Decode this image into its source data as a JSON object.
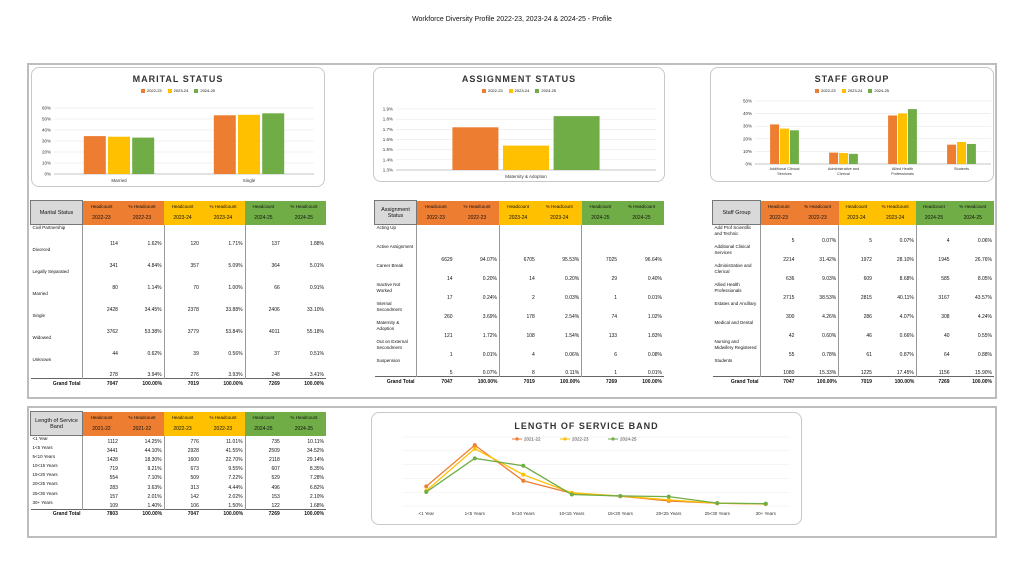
{
  "page_title": "Workforce Diversity Profile 2022-23, 2023-24 & 2024-25 - Profile",
  "colors": {
    "y1": "#ed7d31",
    "y2": "#ffc000",
    "y3": "#70ad47"
  },
  "chart_data": [
    {
      "type": "bar",
      "title": "MARITAL STATUS",
      "categories": [
        "Married",
        "Single"
      ],
      "series": [
        {
          "name": "2022-23",
          "values": [
            34.45,
            53.38
          ]
        },
        {
          "name": "2023-24",
          "values": [
            33.88,
            53.84
          ]
        },
        {
          "name": "2024-25",
          "values": [
            33.1,
            55.18
          ]
        }
      ],
      "yticks": [
        "0%",
        "10%",
        "20%",
        "30%",
        "40%",
        "50%",
        "60%"
      ],
      "ylim": [
        0,
        60
      ]
    },
    {
      "type": "bar",
      "title": "ASSIGNMENT STATUS",
      "categories": [
        "Maternity & Adoption"
      ],
      "series": [
        {
          "name": "2022-23",
          "values": [
            1.72
          ]
        },
        {
          "name": "2023-24",
          "values": [
            1.54
          ]
        },
        {
          "name": "2024-25",
          "values": [
            1.83
          ]
        }
      ],
      "yticks": [
        "1.3%",
        "1.4%",
        "1.5%",
        "1.6%",
        "1.7%",
        "1.8%",
        "1.9%"
      ],
      "ylim": [
        1.3,
        1.9
      ]
    },
    {
      "type": "bar",
      "title": "STAFF GROUP",
      "categories": [
        "Additional Clinical Services",
        "Administrative and Clerical",
        "Allied Health Professionals",
        "Students"
      ],
      "series": [
        {
          "name": "2022-23",
          "values": [
            31.42,
            9.03,
            38.53,
            15.33
          ]
        },
        {
          "name": "2023-24",
          "values": [
            28.1,
            8.68,
            40.11,
            17.45
          ]
        },
        {
          "name": "2024-25",
          "values": [
            26.76,
            8.05,
            43.57,
            15.9
          ]
        }
      ],
      "yticks": [
        "0%",
        "10%",
        "20%",
        "30%",
        "40%",
        "50%"
      ],
      "ylim": [
        0,
        50
      ]
    },
    {
      "type": "line",
      "title": "LENGTH OF SERVICE BAND",
      "categories": [
        "<1 Year",
        "1<5 Years",
        "5<10 Years",
        "10<15 Years",
        "15<20 Years",
        "20<25 Years",
        "25<30 Years",
        "30+ Years"
      ],
      "series": [
        {
          "name": "2021-22",
          "values": [
            14.25,
            44.1,
            18.3,
            9.21,
            7.1,
            3.63,
            2.01,
            1.4
          ]
        },
        {
          "name": "2022-23",
          "values": [
            11.01,
            41.55,
            22.7,
            9.55,
            7.22,
            4.44,
            2.02,
            1.5
          ]
        },
        {
          "name": "2024-25",
          "values": [
            10.11,
            34.52,
            29.14,
            8.35,
            7.28,
            6.82,
            2.1,
            1.68
          ]
        }
      ],
      "ylim": [
        0,
        50
      ]
    }
  ],
  "marital": {
    "title": "Marital Status",
    "headers": [
      "Headcount",
      "% Headcount",
      "Headcount",
      "% Headcount",
      "Headcount",
      "% Headcount"
    ],
    "years": [
      "2022-23",
      "2022-23",
      "2023-24",
      "2023-24",
      "2024-25",
      "2024-25"
    ],
    "rows": [
      [
        "Civil Partnership",
        "114",
        "1.62%",
        "120",
        "1.71%",
        "137",
        "1.88%"
      ],
      [
        "Divorced",
        "341",
        "4.84%",
        "357",
        "5.09%",
        "364",
        "5.01%"
      ],
      [
        "Legally Separated",
        "80",
        "1.14%",
        "70",
        "1.00%",
        "66",
        "0.91%"
      ],
      [
        "Married",
        "2428",
        "34.45%",
        "2378",
        "33.88%",
        "2406",
        "33.10%"
      ],
      [
        "Single",
        "3762",
        "53.38%",
        "3779",
        "53.84%",
        "4011",
        "55.18%"
      ],
      [
        "Widowed",
        "44",
        "0.62%",
        "39",
        "0.56%",
        "37",
        "0.51%"
      ],
      [
        "Unknown",
        "278",
        "3.94%",
        "276",
        "3.93%",
        "248",
        "3.41%"
      ]
    ],
    "total": [
      "Grand Total",
      "7047",
      "100.00%",
      "7019",
      "100.00%",
      "7269",
      "100.00%"
    ]
  },
  "assignment": {
    "title": "Assignment Status",
    "headers": [
      "Headcount",
      "% Headcount",
      "Headcount",
      "% Headcount",
      "Headcount",
      "% Headcount"
    ],
    "years": [
      "2022-23",
      "2022-23",
      "2023-24",
      "2023-24",
      "2024-25",
      "2024-25"
    ],
    "rows": [
      [
        "Acting Up",
        "",
        "",
        "",
        "",
        "",
        ""
      ],
      [
        "Active Assignment",
        "6629",
        "94.07%",
        "6705",
        "95.53%",
        "7025",
        "96.64%"
      ],
      [
        "Career Break",
        "14",
        "0.20%",
        "14",
        "0.20%",
        "29",
        "0.40%"
      ],
      [
        "Inactive Not Worked",
        "17",
        "0.24%",
        "2",
        "0.03%",
        "1",
        "0.01%"
      ],
      [
        "Internal Secondment",
        "260",
        "3.69%",
        "178",
        "2.54%",
        "74",
        "1.02%"
      ],
      [
        "Maternity & Adoption",
        "121",
        "1.72%",
        "108",
        "1.54%",
        "133",
        "1.83%"
      ],
      [
        "Out on External Secondment",
        "1",
        "0.01%",
        "4",
        "0.06%",
        "6",
        "0.08%"
      ],
      [
        "Suspension",
        "5",
        "0.07%",
        "8",
        "0.11%",
        "1",
        "0.01%"
      ]
    ],
    "total": [
      "Grand Total",
      "7047",
      "100.00%",
      "7019",
      "100.00%",
      "7269",
      "100.00%"
    ]
  },
  "staff": {
    "title": "Staff Group",
    "headers": [
      "Headcount",
      "% Headcount",
      "Headcount",
      "% Headcount",
      "Headcount",
      "% Headcount"
    ],
    "years": [
      "2022-23",
      "2022-23",
      "2023-24",
      "2023-24",
      "2024-25",
      "2024-25"
    ],
    "rows": [
      [
        "Add Prof Scientific and Technic",
        "5",
        "0.07%",
        "5",
        "0.07%",
        "4",
        "0.06%"
      ],
      [
        "Additional Clinical Services",
        "2214",
        "31.42%",
        "1972",
        "28.10%",
        "1945",
        "26.76%"
      ],
      [
        "Administrative and Clerical",
        "636",
        "9.03%",
        "609",
        "8.68%",
        "585",
        "8.05%"
      ],
      [
        "Allied Health Professionals",
        "2715",
        "38.53%",
        "2815",
        "40.11%",
        "3167",
        "43.57%"
      ],
      [
        "Estates and Ancillary",
        "300",
        "4.26%",
        "286",
        "4.07%",
        "308",
        "4.24%"
      ],
      [
        "Medical and Dental",
        "42",
        "0.60%",
        "46",
        "0.66%",
        "40",
        "0.55%"
      ],
      [
        "Nursing and Midwifery Registered",
        "55",
        "0.78%",
        "61",
        "0.87%",
        "64",
        "0.88%"
      ],
      [
        "Students",
        "1080",
        "15.33%",
        "1225",
        "17.45%",
        "1156",
        "15.90%"
      ]
    ],
    "total": [
      "Grand Total",
      "7047",
      "100.00%",
      "7019",
      "100.00%",
      "7269",
      "100.00%"
    ]
  },
  "service": {
    "title": "Length of Service Band",
    "headers": [
      "Headcount",
      "% Headcount",
      "Headcount",
      "% Headcount",
      "Headcount",
      "% Headcount"
    ],
    "years": [
      "2021-22",
      "2021-22",
      "2022-23",
      "2022-23",
      "2024-25",
      "2024-25"
    ],
    "rows": [
      [
        "<1 Year",
        "1112",
        "14.25%",
        "776",
        "11.01%",
        "735",
        "10.11%"
      ],
      [
        "1<5 Years",
        "3441",
        "44.10%",
        "2928",
        "41.55%",
        "2509",
        "34.52%"
      ],
      [
        "5<10 Years",
        "1428",
        "18.30%",
        "1600",
        "22.70%",
        "2118",
        "29.14%"
      ],
      [
        "10<15 Years",
        "719",
        "9.21%",
        "673",
        "9.55%",
        "607",
        "8.35%"
      ],
      [
        "15<20 Years",
        "554",
        "7.10%",
        "509",
        "7.22%",
        "529",
        "7.28%"
      ],
      [
        "20<25 Years",
        "283",
        "3.63%",
        "313",
        "4.44%",
        "496",
        "6.82%"
      ],
      [
        "25<30 Years",
        "157",
        "2.01%",
        "142",
        "2.02%",
        "153",
        "2.10%"
      ],
      [
        "30+ Years",
        "109",
        "1.40%",
        "106",
        "1.50%",
        "122",
        "1.68%"
      ]
    ],
    "total": [
      "Grand Total",
      "7803",
      "100.00%",
      "7047",
      "100.00%",
      "7269",
      "100.00%"
    ]
  }
}
